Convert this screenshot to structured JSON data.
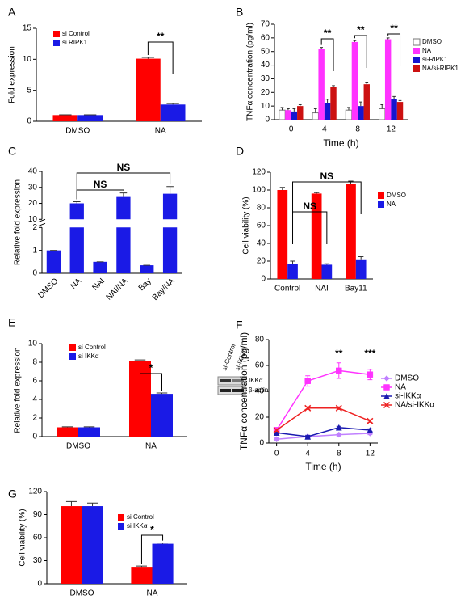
{
  "chart_data": [
    {
      "panel": "A",
      "type": "bar",
      "ylabel": "Fold expression",
      "categories": [
        "DMSO",
        "NA"
      ],
      "series": [
        {
          "name": "si Control",
          "color": "#ff0000",
          "values": [
            1.0,
            10.1
          ],
          "errors": [
            0.05,
            0.2
          ]
        },
        {
          "name": "si RIPK1",
          "color": "#1a1ae6",
          "values": [
            1.0,
            2.7
          ],
          "errors": [
            0.05,
            0.15
          ]
        }
      ],
      "ylim": [
        0,
        15
      ],
      "yticks": [
        0,
        5,
        10,
        15
      ],
      "annotations": [
        "**"
      ]
    },
    {
      "panel": "B",
      "type": "bar",
      "ylabel": "TNFα concentration (pg/ml)",
      "xlabel": "Time (h)",
      "categories": [
        "0",
        "4",
        "8",
        "12"
      ],
      "series": [
        {
          "name": "DMSO",
          "color": "#ffffff",
          "values": [
            7,
            5,
            7,
            8
          ],
          "errors": [
            2,
            3,
            2,
            3
          ]
        },
        {
          "name": "NA",
          "color": "#ff33ff",
          "values": [
            7,
            52,
            57,
            59
          ],
          "errors": [
            1,
            1,
            1,
            1
          ]
        },
        {
          "name": "si-RIPK1",
          "color": "#1515d0",
          "values": [
            6,
            12,
            10,
            15
          ],
          "errors": [
            2,
            3,
            3,
            2
          ]
        },
        {
          "name": "NA/si-RIPK1",
          "color": "#cc1111",
          "values": [
            10,
            24,
            26,
            13
          ],
          "errors": [
            1,
            1,
            1,
            1
          ]
        }
      ],
      "ylim": [
        0,
        70
      ],
      "yticks": [
        0,
        10,
        20,
        30,
        40,
        50,
        60,
        70
      ],
      "annotations": [
        "**",
        "**",
        "**"
      ]
    },
    {
      "panel": "C",
      "type": "bar",
      "ylabel": "Relative fold expression",
      "categories": [
        "DMSO",
        "NA",
        "NAI",
        "NAI/NA",
        "Bay",
        "Bay/NA"
      ],
      "values": [
        1,
        20,
        0.5,
        24,
        0.35,
        26
      ],
      "errors": [
        0,
        1,
        0,
        2.5,
        0,
        4.5
      ],
      "color": "#1a1ae6",
      "ylim": [
        0,
        40
      ],
      "ybreak": [
        2,
        10
      ],
      "yticks": [
        0,
        1,
        2,
        10,
        20,
        30,
        40
      ],
      "annotations": [
        "NS",
        "NS"
      ]
    },
    {
      "panel": "D",
      "type": "bar",
      "ylabel": "Cell viability (%)",
      "categories": [
        "Control",
        "NAI",
        "Bay11"
      ],
      "series": [
        {
          "name": "DMSO",
          "color": "#ff0000",
          "values": [
            100,
            96,
            107
          ],
          "errors": [
            3,
            1,
            3
          ]
        },
        {
          "name": "NA",
          "color": "#1a1ae6",
          "values": [
            17,
            16,
            22
          ],
          "errors": [
            3,
            1,
            3
          ]
        }
      ],
      "ylim": [
        0,
        120
      ],
      "yticks": [
        0,
        20,
        40,
        60,
        80,
        100,
        120
      ],
      "annotations": [
        "NS",
        "NS"
      ]
    },
    {
      "panel": "E",
      "type": "bar",
      "ylabel": "Relative fold expression",
      "categories": [
        "DMSO",
        "NA"
      ],
      "series": [
        {
          "name": "si Control",
          "color": "#ff0000",
          "values": [
            1.0,
            8.1
          ],
          "errors": [
            0.05,
            0.15
          ]
        },
        {
          "name": "si IKKα",
          "color": "#1a1ae6",
          "values": [
            1.0,
            4.6
          ],
          "errors": [
            0.05,
            0.1
          ]
        }
      ],
      "ylim": [
        0,
        10
      ],
      "yticks": [
        0,
        2,
        4,
        6,
        8,
        10
      ],
      "annotations": [
        "*"
      ],
      "inset": {
        "columns": [
          "si-Control",
          "si-IKKα"
        ],
        "rows": [
          "IKKα",
          "β-actin"
        ]
      }
    },
    {
      "panel": "F",
      "type": "line",
      "ylabel": "TNFα concentration (pg/ml)",
      "xlabel": "Time (h)",
      "x": [
        0,
        4,
        8,
        12
      ],
      "series": [
        {
          "name": "DMSO",
          "color": "#c080ff",
          "marker": "diamond",
          "values": [
            3,
            5,
            6.5,
            7.5
          ],
          "errors": [
            1,
            1,
            1,
            1
          ]
        },
        {
          "name": "NA",
          "color": "#ff33ff",
          "marker": "square",
          "values": [
            10,
            48,
            56,
            53
          ],
          "errors": [
            2,
            4,
            6,
            4
          ]
        },
        {
          "name": "si-IKKα",
          "color": "#1a1ab0",
          "marker": "triangle",
          "values": [
            8,
            5,
            12,
            10
          ],
          "errors": [
            1,
            1,
            1,
            1
          ]
        },
        {
          "name": "NA/si-IKKα",
          "color": "#ee2222",
          "marker": "x",
          "values": [
            10,
            27,
            27,
            17
          ],
          "errors": [
            1,
            1,
            1,
            1
          ]
        }
      ],
      "xlim": [
        -1,
        13
      ],
      "xticks": [
        0,
        4,
        8,
        12
      ],
      "ylim": [
        0,
        80
      ],
      "yticks": [
        0,
        20,
        40,
        60,
        80
      ],
      "annotations": [
        "**",
        "***"
      ]
    },
    {
      "panel": "G",
      "type": "bar",
      "ylabel": "Cell viability (%)",
      "categories": [
        "DMSO",
        "NA"
      ],
      "series": [
        {
          "name": "si Control",
          "color": "#ff0000",
          "values": [
            101,
            22
          ],
          "errors": [
            6,
            1
          ]
        },
        {
          "name": "si IKKα",
          "color": "#1a1ae6",
          "values": [
            101,
            52
          ],
          "errors": [
            4,
            1
          ]
        }
      ],
      "ylim": [
        0,
        120
      ],
      "yticks": [
        0,
        30,
        60,
        90,
        120
      ],
      "annotations": [
        "*"
      ]
    }
  ]
}
